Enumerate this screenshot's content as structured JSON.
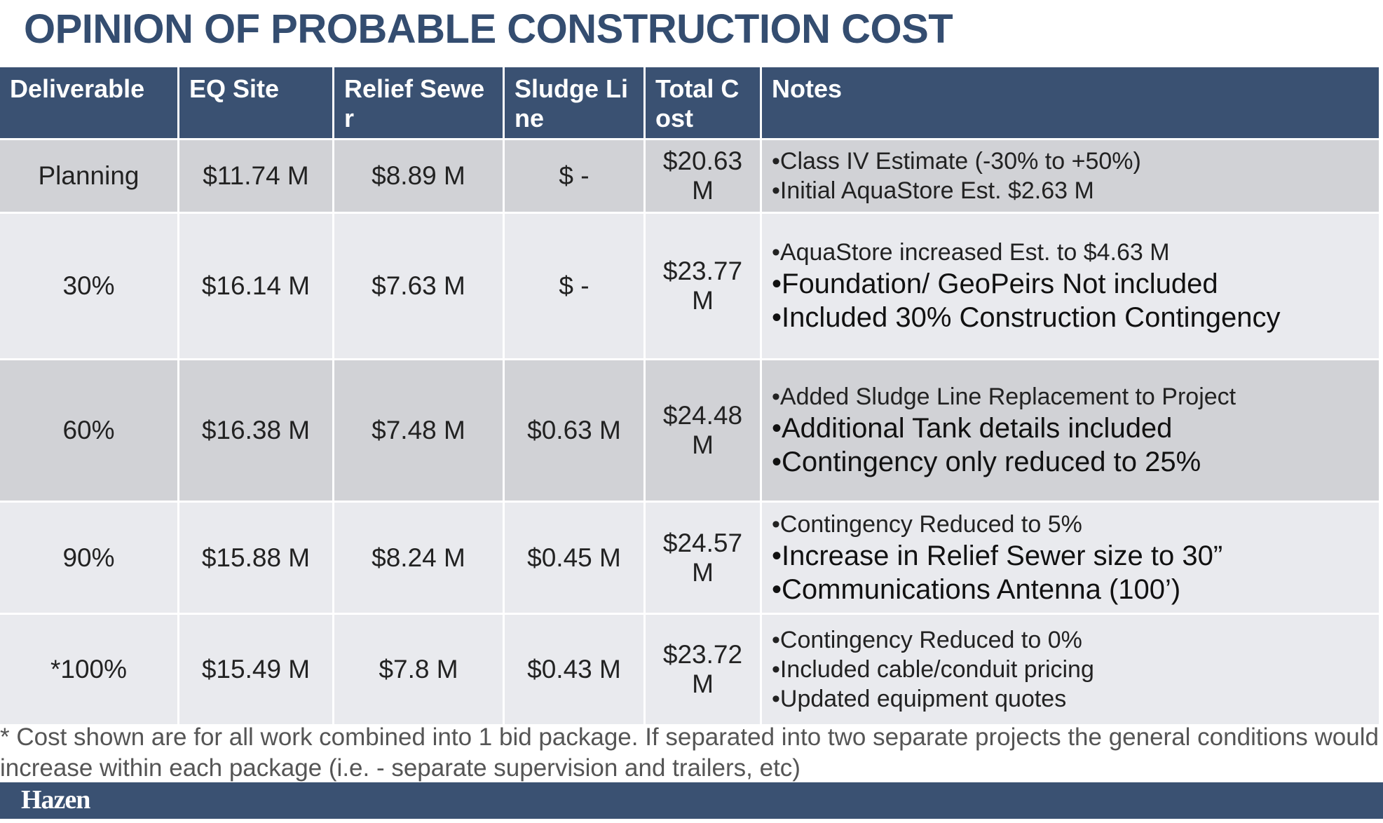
{
  "title": "OPINION OF PROBABLE CONSTRUCTION COST",
  "colors": {
    "header_bg": "#3a5172",
    "title": "#344d70",
    "row_dark": "#d1d2d6",
    "row_light": "#e9eaee"
  },
  "table": {
    "headers": [
      "Deliverable",
      "EQ Site",
      "Relief Sewer",
      "Sludge Line",
      "Total Cost",
      "Notes"
    ],
    "rows": [
      {
        "deliverable": "Planning",
        "eq_site": "$11.74 M",
        "relief_sewer": "$8.89 M",
        "sludge_line": "$ -",
        "total_cost": "$20.63 M",
        "notes": [
          {
            "text": "•Class IV Estimate (-30% to +50%)",
            "size": "small"
          },
          {
            "text": "•Initial AquaStore Est. $2.63 M",
            "size": "small"
          }
        ]
      },
      {
        "deliverable": "30%",
        "eq_site": "$16.14 M",
        "relief_sewer": "$7.63 M",
        "sludge_line": "$ -",
        "total_cost": "$23.77 M",
        "notes": [
          {
            "text": "•AquaStore increased Est. to $4.63 M",
            "size": "small"
          },
          {
            "text": "•Foundation/ GeoPeirs Not included",
            "size": "large"
          },
          {
            "text": "•Included 30% Construction Contingency",
            "size": "large"
          }
        ]
      },
      {
        "deliverable": "60%",
        "eq_site": "$16.38 M",
        "relief_sewer": "$7.48 M",
        "sludge_line": "$0.63 M",
        "total_cost": "$24.48 M",
        "notes": [
          {
            "text": "•Added Sludge Line Replacement to Project",
            "size": "small"
          },
          {
            "text": "•Additional Tank details included",
            "size": "large"
          },
          {
            "text": "•Contingency only reduced to 25%",
            "size": "large"
          }
        ]
      },
      {
        "deliverable": "90%",
        "eq_site": "$15.88 M",
        "relief_sewer": "$8.24 M",
        "sludge_line": "$0.45 M",
        "total_cost": "$24.57 M",
        "notes": [
          {
            "text": "•Contingency Reduced to 5%",
            "size": "small"
          },
          {
            "text": "•Increase in Relief Sewer size to 30”",
            "size": "large"
          },
          {
            "text": "•Communications Antenna (100’)",
            "size": "large"
          }
        ]
      },
      {
        "deliverable": "*100%",
        "eq_site": "$15.49 M",
        "relief_sewer": "$7.8 M",
        "sludge_line": "$0.43 M",
        "total_cost": "$23.72 M",
        "notes": [
          {
            "text": "•Contingency Reduced to 0%",
            "size": "small"
          },
          {
            "text": "•Included cable/conduit pricing",
            "size": "small"
          },
          {
            "text": "•Updated equipment quotes",
            "size": "small"
          }
        ]
      }
    ]
  },
  "footnote": "* Cost shown are for all work combined into 1 bid package.  If separated into two separate projects the general conditions would increase within each package (i.e. - separate supervision and trailers, etc)",
  "footer": {
    "logo": "Hazen"
  }
}
